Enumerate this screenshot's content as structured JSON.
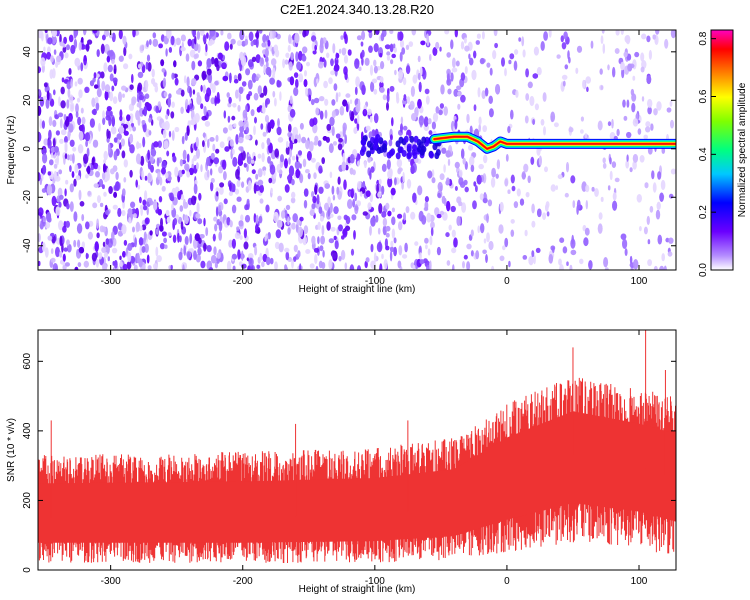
{
  "figure_title": "C2E1.2024.340.13.28.R20",
  "chart_data": [
    {
      "type": "heatmap",
      "title": "",
      "xlabel": "Height of straight line (km)",
      "ylabel": "Frequency (Hz)",
      "xlim": [
        -355,
        128
      ],
      "ylim": [
        -50,
        49
      ],
      "xticks": [
        "-300",
        "-200",
        "-100",
        "0",
        "100"
      ],
      "yticks": [
        "-40",
        "-20",
        "0",
        "20",
        "40"
      ],
      "colorbar": {
        "label": "Normalized spectral amplitude",
        "range": [
          0.0,
          0.83
        ],
        "ticks": [
          "0.0",
          "0.2",
          "0.4",
          "0.6",
          "0.8"
        ],
        "colormap": [
          "#ffffff",
          "#b48cff",
          "#6a00ff",
          "#0000ff",
          "#00ffff",
          "#00ff00",
          "#ffff00",
          "#ff8000",
          "#ff0000",
          "#ff00c0"
        ]
      },
      "ridge": {
        "description": "bright narrowband signal near 1-2 Hz",
        "points": [
          {
            "x": -55,
            "y": 4
          },
          {
            "x": -40,
            "y": 5
          },
          {
            "x": -30,
            "y": 5
          },
          {
            "x": -22,
            "y": 3
          },
          {
            "x": -15,
            "y": 0
          },
          {
            "x": -10,
            "y": 1
          },
          {
            "x": -5,
            "y": 3
          },
          {
            "x": 0,
            "y": 2
          },
          {
            "x": 50,
            "y": 2
          },
          {
            "x": 100,
            "y": 2
          },
          {
            "x": 128,
            "y": 2
          }
        ]
      },
      "noise_density": [
        {
          "x": -355,
          "level": 0.9
        },
        {
          "x": -120,
          "level": 0.85
        },
        {
          "x": -60,
          "level": 0.6
        },
        {
          "x": 0,
          "level": 0.3
        },
        {
          "x": 128,
          "level": 0.25
        }
      ],
      "grid": false
    },
    {
      "type": "line",
      "title": "",
      "xlabel": "Height of straight line (km)",
      "ylabel": "SNR (10 * v/v)",
      "xlim": [
        -355,
        128
      ],
      "ylim": [
        0,
        690
      ],
      "xticks": [
        "-300",
        "-200",
        "-100",
        "0",
        "100"
      ],
      "yticks": [
        "0",
        "200",
        "400",
        "600"
      ],
      "series": [
        {
          "color": "#ee3333",
          "envelope": [
            {
              "x": -355,
              "low": 20,
              "mean": 150,
              "high": 330
            },
            {
              "x": -200,
              "low": 20,
              "mean": 150,
              "high": 340
            },
            {
              "x": -100,
              "low": 20,
              "mean": 160,
              "high": 350
            },
            {
              "x": -40,
              "low": 30,
              "mean": 180,
              "high": 380
            },
            {
              "x": 0,
              "low": 50,
              "mean": 260,
              "high": 480
            },
            {
              "x": 50,
              "low": 80,
              "mean": 330,
              "high": 560
            },
            {
              "x": 100,
              "low": 60,
              "mean": 300,
              "high": 520
            },
            {
              "x": 128,
              "low": 40,
              "mean": 260,
              "high": 500
            }
          ],
          "peaks": [
            {
              "x": -345,
              "y": 430
            },
            {
              "x": -160,
              "y": 420
            },
            {
              "x": -75,
              "y": 430
            },
            {
              "x": 50,
              "y": 640
            },
            {
              "x": 105,
              "y": 690
            },
            {
              "x": 120,
              "y": 575
            }
          ]
        }
      ],
      "grid": false
    }
  ]
}
